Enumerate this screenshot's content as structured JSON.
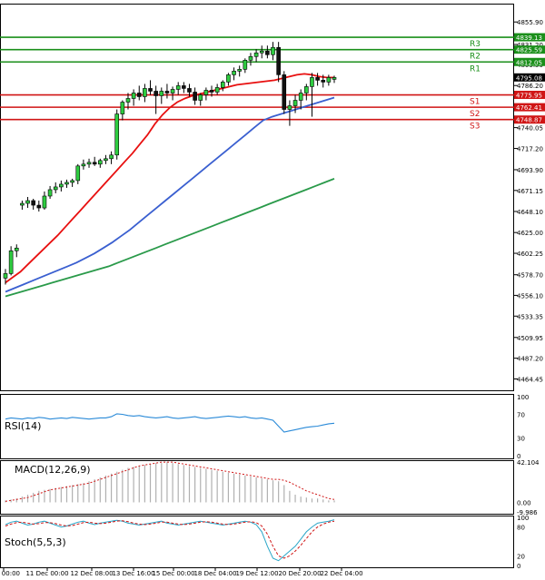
{
  "chart_data": [
    {
      "type": "candlestick",
      "panel": "price",
      "ylim": [
        4452,
        4876
      ],
      "y_ticks": [
        "4855.90",
        "4831.20",
        "4809.50",
        "4786.20",
        "4763.10",
        "4740.05",
        "4717.20",
        "4693.90",
        "4671.15",
        "4648.10",
        "4625.00",
        "4602.25",
        "4578.70",
        "4556.10",
        "4533.35",
        "4509.95",
        "4487.20",
        "4464.45"
      ],
      "x_tick_labels": [
        "Dec 00:00",
        "11 Dec 00:00",
        "12 Dec 08:00",
        "13 Dec 16:00",
        "15 Dec 00:00",
        "18 Dec 04:00",
        "19 Dec 12:00",
        "20 Dec 20:00",
        "22 Dec 04:00"
      ],
      "current_price": {
        "value": 4795.08,
        "label": "4795.08"
      },
      "levels": [
        {
          "name": "R3",
          "value": 4839.13,
          "label": "4839.13",
          "color": "#1a8f1a"
        },
        {
          "name": "R2",
          "value": 4825.59,
          "label": "4825.59",
          "color": "#1a8f1a"
        },
        {
          "name": "R1",
          "value": 4812.05,
          "label": "4812.05",
          "color": "#1a8f1a"
        },
        {
          "name": "S1",
          "value": 4775.95,
          "label": "4775.95",
          "color": "#d01515"
        },
        {
          "name": "S2",
          "value": 4762.41,
          "label": "4762.41",
          "color": "#d01515"
        },
        {
          "name": "S3",
          "value": 4748.87,
          "label": "4748.87",
          "color": "#d01515"
        }
      ],
      "candles": [
        [
          4575,
          4585,
          4568,
          4580
        ],
        [
          4580,
          4610,
          4578,
          4605
        ],
        [
          4605,
          4612,
          4598,
          4608
        ],
        [
          4655,
          4660,
          4650,
          4657
        ],
        [
          4657,
          4664,
          4652,
          4660
        ],
        [
          4660,
          4662,
          4650,
          4655
        ],
        [
          4655,
          4660,
          4648,
          4652
        ],
        [
          4652,
          4670,
          4650,
          4665
        ],
        [
          4665,
          4676,
          4662,
          4672
        ],
        [
          4672,
          4680,
          4668,
          4675
        ],
        [
          4675,
          4682,
          4670,
          4678
        ],
        [
          4678,
          4683,
          4674,
          4680
        ],
        [
          4680,
          4684,
          4675,
          4682
        ],
        [
          4682,
          4700,
          4678,
          4698
        ],
        [
          4698,
          4705,
          4694,
          4700
        ],
        [
          4700,
          4706,
          4696,
          4702
        ],
        [
          4702,
          4708,
          4698,
          4700
        ],
        [
          4700,
          4706,
          4696,
          4704
        ],
        [
          4704,
          4710,
          4700,
          4706
        ],
        [
          4706,
          4714,
          4700,
          4710
        ],
        [
          4710,
          4760,
          4705,
          4755
        ],
        [
          4755,
          4770,
          4748,
          4768
        ],
        [
          4768,
          4778,
          4760,
          4772
        ],
        [
          4772,
          4782,
          4764,
          4778
        ],
        [
          4778,
          4786,
          4770,
          4774
        ],
        [
          4774,
          4788,
          4768,
          4783
        ],
        [
          4783,
          4792,
          4776,
          4780
        ],
        [
          4780,
          4786,
          4755,
          4775
        ],
        [
          4775,
          4784,
          4766,
          4780
        ],
        [
          4780,
          4788,
          4772,
          4778
        ],
        [
          4778,
          4785,
          4770,
          4782
        ],
        [
          4782,
          4790,
          4776,
          4786
        ],
        [
          4786,
          4790,
          4778,
          4783
        ],
        [
          4783,
          4788,
          4774,
          4779
        ],
        [
          4779,
          4784,
          4765,
          4770
        ],
        [
          4770,
          4778,
          4764,
          4776
        ],
        [
          4776,
          4784,
          4770,
          4781
        ],
        [
          4781,
          4786,
          4774,
          4779
        ],
        [
          4779,
          4788,
          4776,
          4784
        ],
        [
          4784,
          4792,
          4780,
          4790
        ],
        [
          4790,
          4800,
          4786,
          4798
        ],
        [
          4798,
          4806,
          4792,
          4802
        ],
        [
          4802,
          4808,
          4796,
          4804
        ],
        [
          4804,
          4816,
          4800,
          4814
        ],
        [
          4814,
          4822,
          4808,
          4818
        ],
        [
          4818,
          4826,
          4812,
          4822
        ],
        [
          4822,
          4830,
          4816,
          4824
        ],
        [
          4824,
          4830,
          4816,
          4820
        ],
        [
          4820,
          4834,
          4814,
          4828
        ],
        [
          4828,
          4834,
          4790,
          4798
        ],
        [
          4798,
          4802,
          4755,
          4760
        ],
        [
          4760,
          4770,
          4742,
          4764
        ],
        [
          4764,
          4776,
          4756,
          4770
        ],
        [
          4770,
          4782,
          4760,
          4778
        ],
        [
          4778,
          4788,
          4770,
          4785
        ],
        [
          4785,
          4800,
          4752,
          4795
        ],
        [
          4795,
          4800,
          4786,
          4792
        ],
        [
          4792,
          4798,
          4784,
          4790
        ],
        [
          4790,
          4798,
          4786,
          4795
        ],
        [
          4793,
          4797,
          4789,
          4795
        ]
      ],
      "series": [
        {
          "indicator": "MA-red",
          "color": "#e81010",
          "values": [
            4570,
            4576,
            4582,
            4590,
            4598,
            4606,
            4614,
            4622,
            4631,
            4640,
            4649,
            4658,
            4667,
            4676,
            4685,
            4694,
            4703,
            4712,
            4722,
            4732,
            4744,
            4754,
            4762,
            4768,
            4772,
            4775,
            4777,
            4779,
            4781,
            4783,
            4785,
            4787,
            4788,
            4789,
            4790,
            4791,
            4792,
            4794,
            4796,
            4798,
            4799,
            4798,
            4796,
            4795,
            4795
          ]
        },
        {
          "indicator": "MA-blue",
          "color": "#3a5fd0",
          "values": [
            4560,
            4564,
            4568,
            4572,
            4576,
            4580,
            4584,
            4588,
            4592,
            4597,
            4602,
            4608,
            4614,
            4621,
            4628,
            4636,
            4644,
            4652,
            4660,
            4668,
            4676,
            4684,
            4692,
            4700,
            4708,
            4716,
            4724,
            4732,
            4740,
            4748,
            4752,
            4755,
            4758,
            4761,
            4764,
            4767,
            4770,
            4773
          ]
        },
        {
          "indicator": "MA-green",
          "color": "#2a9a4a",
          "values": [
            4555,
            4558,
            4561,
            4564,
            4567,
            4570,
            4573,
            4576,
            4579,
            4582,
            4585,
            4588,
            4592,
            4596,
            4600,
            4604,
            4608,
            4612,
            4616,
            4620,
            4624,
            4628,
            4632,
            4636,
            4640,
            4644,
            4648,
            4652,
            4656,
            4660,
            4664,
            4668,
            4672,
            4676,
            4680,
            4684
          ]
        }
      ]
    },
    {
      "type": "line",
      "panel": "rsi",
      "title": "RSI(14)",
      "ylim": [
        0,
        100
      ],
      "y_ticks": [
        "100",
        "70",
        "30",
        "0"
      ],
      "series": [
        {
          "color": "#2a8ad8",
          "values": [
            62,
            64,
            63,
            62,
            64,
            63,
            65,
            64,
            62,
            63,
            64,
            63,
            65,
            64,
            63,
            62,
            63,
            64,
            64,
            66,
            71,
            70,
            68,
            67,
            68,
            66,
            65,
            64,
            65,
            66,
            64,
            63,
            64,
            65,
            66,
            64,
            63,
            64,
            65,
            66,
            67,
            66,
            65,
            66,
            64,
            63,
            64,
            62,
            60,
            50,
            40,
            42,
            44,
            46,
            48,
            49,
            50,
            52,
            54,
            55
          ]
        }
      ]
    },
    {
      "type": "bar",
      "panel": "macd",
      "title": "MACD(12,26,9)",
      "y_ticks": [
        "42.104",
        "0.00",
        "-9.986"
      ],
      "ylim": [
        -9.986,
        42.104
      ],
      "bar_values": [
        2,
        3,
        4,
        6,
        8,
        10,
        12,
        13,
        14,
        15,
        16,
        17,
        18,
        19,
        20,
        22,
        24,
        26,
        28,
        30,
        32,
        34,
        36,
        37,
        38,
        39,
        40,
        41,
        41,
        42,
        41,
        40,
        39,
        38,
        37,
        36,
        35,
        34,
        33,
        32,
        31,
        30,
        29,
        28,
        27,
        26,
        25,
        24,
        23,
        22,
        18,
        12,
        8,
        6,
        5,
        4,
        4,
        3,
        2,
        2
      ],
      "signal_values": [
        1,
        2,
        3,
        4,
        5,
        7,
        9,
        11,
        13,
        14,
        15,
        16,
        17,
        18,
        19,
        20,
        22,
        24,
        26,
        28,
        30,
        32,
        34,
        36,
        38,
        39,
        40,
        41,
        42,
        42,
        42,
        41,
        40,
        39,
        38,
        37,
        36,
        35,
        34,
        33,
        32,
        31,
        30,
        29,
        28,
        27,
        26,
        25,
        24,
        24,
        23,
        21,
        18,
        15,
        12,
        10,
        8,
        6,
        4,
        3
      ]
    },
    {
      "type": "line",
      "panel": "stoch",
      "title": "Stoch(5,5,3)",
      "ylim": [
        0,
        100
      ],
      "y_ticks": [
        "100",
        "80",
        "20",
        "0"
      ],
      "series": [
        {
          "name": "%K",
          "color": "#2aa6c8",
          "values": [
            85,
            90,
            92,
            88,
            84,
            86,
            90,
            92,
            88,
            84,
            80,
            82,
            86,
            90,
            92,
            88,
            85,
            88,
            90,
            92,
            94,
            92,
            88,
            86,
            84,
            86,
            88,
            90,
            92,
            88,
            86,
            84,
            86,
            88,
            90,
            92,
            90,
            88,
            86,
            84,
            86,
            88,
            90,
            92,
            90,
            85,
            70,
            40,
            15,
            10,
            20,
            30,
            40,
            55,
            70,
            80,
            88,
            90,
            92,
            95
          ]
        },
        {
          "name": "%D",
          "color": "#d01515",
          "values": [
            82,
            86,
            89,
            90,
            88,
            86,
            87,
            89,
            89,
            87,
            84,
            82,
            83,
            86,
            89,
            90,
            88,
            87,
            88,
            90,
            92,
            93,
            91,
            88,
            86,
            85,
            86,
            88,
            90,
            90,
            88,
            86,
            85,
            86,
            88,
            90,
            91,
            90,
            88,
            86,
            85,
            86,
            88,
            90,
            91,
            89,
            82,
            65,
            40,
            20,
            15,
            20,
            30,
            42,
            56,
            70,
            80,
            86,
            90,
            92
          ]
        }
      ]
    }
  ]
}
